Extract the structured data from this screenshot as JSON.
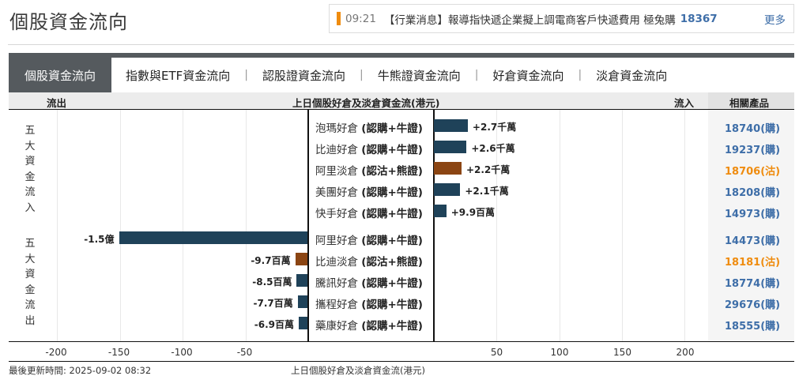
{
  "page": {
    "title": "個股資金流向"
  },
  "news": {
    "time": "09:21",
    "text": "【行業消息】報導指快遞企業擬上調電商客戶快遞費用 極兔購",
    "code": "18367",
    "more": "更多",
    "indicator_color": "#ef8c0f"
  },
  "tabs": [
    {
      "label": "個股資金流向",
      "active": true
    },
    {
      "label": "指數與ETF資金流向",
      "active": false
    },
    {
      "label": "認股證資金流向",
      "active": false
    },
    {
      "label": "牛熊證資金流向",
      "active": false
    },
    {
      "label": "好倉資金流向",
      "active": false
    },
    {
      "label": "淡倉資金流向",
      "active": false
    }
  ],
  "tab_separator": "|",
  "header": {
    "outflow": "流出",
    "title": "上日個股好倉及淡倉資金流(港元)",
    "inflow": "流入",
    "related": "相關產品"
  },
  "side_labels": {
    "inflow": "五大資金流入",
    "outflow": "五大資金流出"
  },
  "colors": {
    "bull": "#1f4259",
    "bear": "#8b4513",
    "link_blue": "#3e6ea8",
    "link_orange": "#ef8c0f"
  },
  "chart_data": {
    "type": "bar",
    "orientation": "horizontal-diverging",
    "title": "上日個股好倉及淡倉資金流(港元)",
    "xlabel": "上日個股好倉及淡倉資金流(港元)",
    "unit": "百萬 (HKD millions)",
    "xlim": [
      -200,
      200
    ],
    "xticks": [
      -200,
      -150,
      -100,
      -50,
      50,
      100,
      150,
      200
    ],
    "grid": true,
    "inflow": [
      {
        "name": "泡瑪好倉",
        "type": "(認購+牛證)",
        "value": 27,
        "label": "+2.7千萬",
        "side": "bull",
        "related": "18740(購)"
      },
      {
        "name": "比迪好倉",
        "type": "(認購+牛證)",
        "value": 26,
        "label": "+2.6千萬",
        "side": "bull",
        "related": "19237(購)"
      },
      {
        "name": "阿里淡倉",
        "type": "(認沽+熊證)",
        "value": 22,
        "label": "+2.2千萬",
        "side": "bear",
        "related": "18706(沽)"
      },
      {
        "name": "美團好倉",
        "type": "(認購+牛證)",
        "value": 21,
        "label": "+2.1千萬",
        "side": "bull",
        "related": "18208(購)"
      },
      {
        "name": "快手好倉",
        "type": "(認購+牛證)",
        "value": 9.9,
        "label": "+9.9百萬",
        "side": "bull",
        "related": "14973(購)"
      }
    ],
    "outflow": [
      {
        "name": "阿里好倉",
        "type": "(認購+牛證)",
        "value": -150,
        "label": "-1.5億",
        "side": "bull",
        "related": "14473(購)"
      },
      {
        "name": "比迪淡倉",
        "type": "(認沽+熊證)",
        "value": -9.7,
        "label": "-9.7百萬",
        "side": "bear",
        "related": "18181(沽)"
      },
      {
        "name": "騰訊好倉",
        "type": "(認購+牛證)",
        "value": -8.5,
        "label": "-8.5百萬",
        "side": "bull",
        "related": "18774(購)"
      },
      {
        "name": "攜程好倉",
        "type": "(認購+牛證)",
        "value": -7.7,
        "label": "-7.7百萬",
        "side": "bull",
        "related": "29676(購)"
      },
      {
        "name": "藥康好倉",
        "type": "(認購+牛證)",
        "value": -6.9,
        "label": "-6.9百萬",
        "side": "bull",
        "related": "18555(購)"
      }
    ]
  },
  "footer": {
    "updated": "最後更新時間: 2025-09-02 08:32",
    "axis_title": "上日個股好倉及淡倉資金流(港元)"
  }
}
